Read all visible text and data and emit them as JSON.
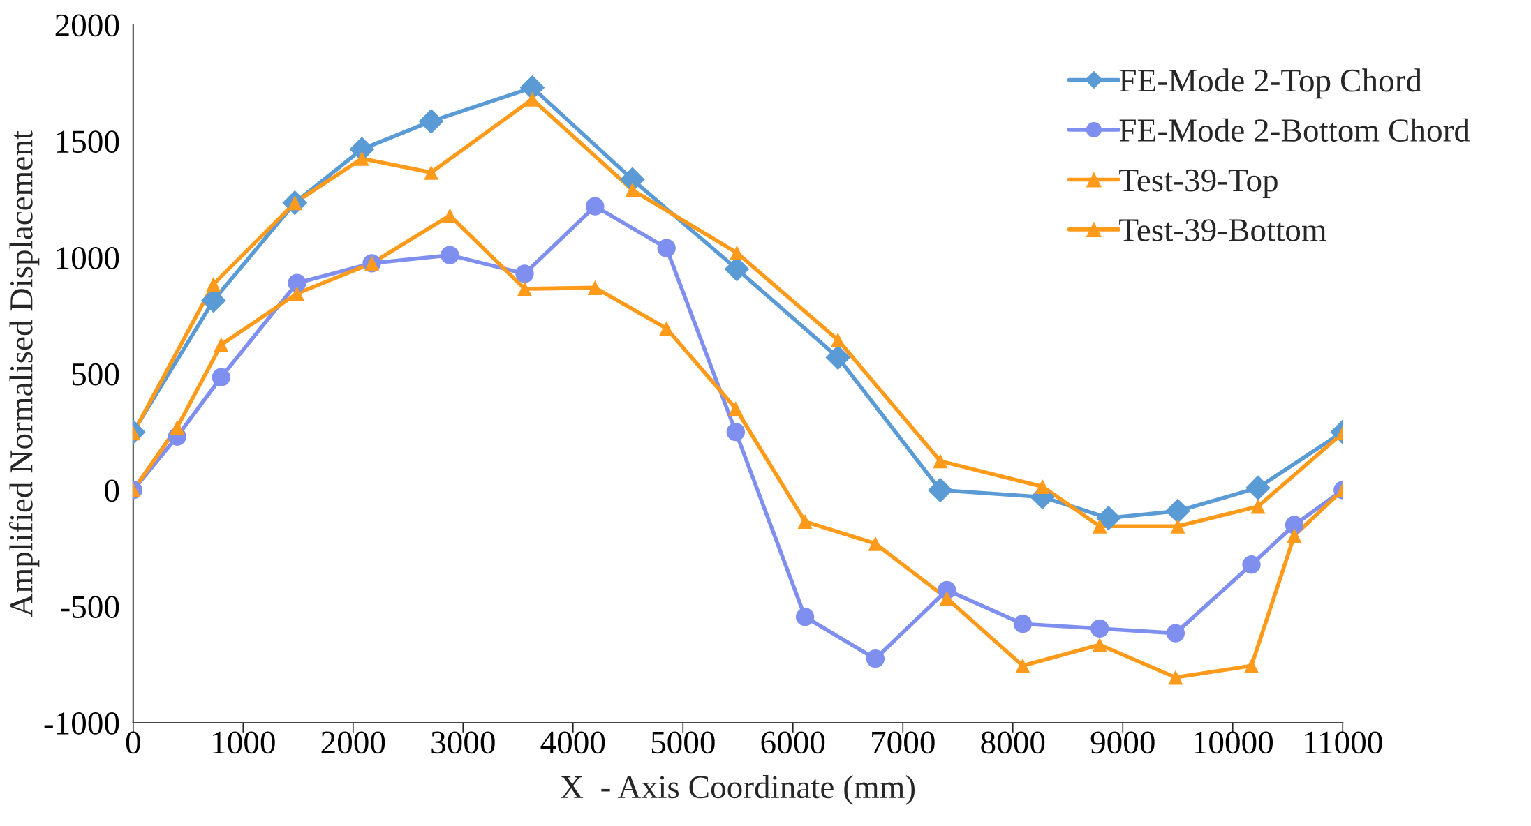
{
  "chart_data": {
    "type": "line",
    "xlabel": "X  - Axis Coordinate (mm)",
    "ylabel": "Amplified Normalised Displacement",
    "xlim": [
      0,
      11000
    ],
    "xticks": [
      0,
      1000,
      2000,
      3000,
      4000,
      5000,
      6000,
      7000,
      8000,
      9000,
      10000,
      11000
    ],
    "ylim": [
      -1000,
      2000
    ],
    "yticks": [
      -1000,
      -500,
      0,
      500,
      1000,
      1500,
      2000
    ],
    "grid": false,
    "legend": "top right",
    "line_style": "solid",
    "series": [
      {
        "name": "FE-Mode 2-Top Chord",
        "color": "#5b9bd5",
        "marker": "diamond",
        "x": [
          0,
          730,
          1470,
          2080,
          2710,
          3630,
          4540,
          5490,
          6410,
          7340,
          8270,
          8870,
          9500,
          10230,
          11000
        ],
        "values": [
          250,
          815,
          1235,
          1465,
          1585,
          1730,
          1335,
          950,
          570,
          0,
          -30,
          -120,
          -90,
          10,
          250
        ]
      },
      {
        "name": "FE-Mode 2-Bottom Chord",
        "color": "#7f8ff0",
        "marker": "circle",
        "x": [
          0,
          400,
          800,
          1490,
          2170,
          2880,
          3560,
          4200,
          4850,
          5480,
          6110,
          6750,
          7400,
          8090,
          8790,
          9480,
          10170,
          10560,
          11000
        ],
        "values": [
          0,
          230,
          485,
          890,
          975,
          1010,
          930,
          1220,
          1040,
          250,
          -545,
          -725,
          -430,
          -575,
          -595,
          -615,
          -320,
          -150,
          0
        ]
      },
      {
        "name": "Test-39-Top",
        "color": "#ff9a1a",
        "marker": "triangle",
        "x": [
          0,
          730,
          1470,
          2080,
          2710,
          3630,
          4540,
          5490,
          6410,
          7340,
          8270,
          8790,
          9500,
          10230,
          11000
        ],
        "values": [
          245,
          885,
          1235,
          1425,
          1365,
          1680,
          1290,
          1020,
          645,
          125,
          15,
          -155,
          -155,
          -70,
          245
        ]
      },
      {
        "name": "Test-39-Bottom",
        "color": "#ff9a1a",
        "marker": "triangle",
        "x": [
          0,
          400,
          800,
          1490,
          2170,
          2880,
          3560,
          4200,
          4850,
          5480,
          6110,
          6750,
          7400,
          8090,
          8790,
          9480,
          10170,
          10560,
          11000
        ],
        "values": [
          0,
          270,
          625,
          845,
          975,
          1180,
          865,
          870,
          695,
          350,
          -135,
          -230,
          -465,
          -755,
          -665,
          -805,
          -755,
          -195,
          0
        ]
      }
    ]
  }
}
